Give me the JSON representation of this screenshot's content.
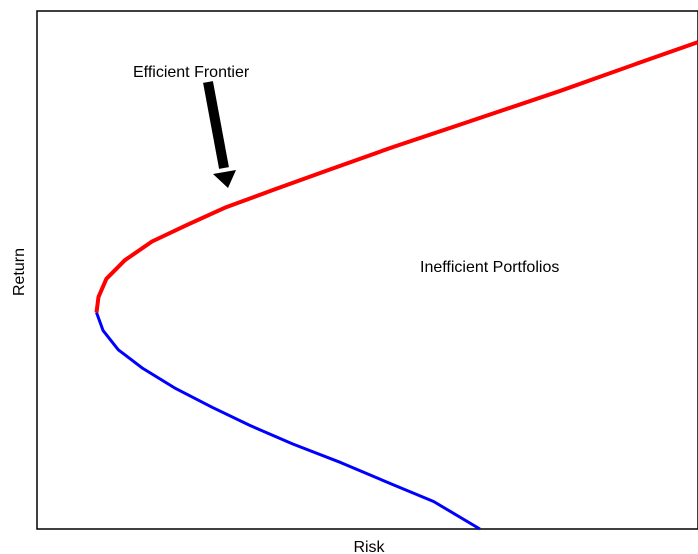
{
  "chart_data": {
    "type": "line",
    "title": "",
    "xlabel": "Risk",
    "ylabel": "Return",
    "xlim": [
      0,
      100
    ],
    "ylim": [
      0,
      100
    ],
    "grid": false,
    "legend": "none",
    "annotations": [
      {
        "text": "Efficient Frontier",
        "arrow": true
      },
      {
        "text": "Inefficient Portfolios",
        "arrow": false
      }
    ],
    "series": [
      {
        "color": "#ff0000",
        "x": [
          9.0,
          9.3,
          10.5,
          13.3,
          17.4,
          22.7,
          28.4,
          36.0,
          44.1,
          54.0,
          65.0,
          79.2,
          93.1,
          100.0
        ],
        "y": [
          41.8,
          44.8,
          48.3,
          51.9,
          55.5,
          58.7,
          62.0,
          65.6,
          69.3,
          73.8,
          78.5,
          84.6,
          90.9,
          94.0
        ]
      },
      {
        "color": "#0000ff",
        "x": [
          9.0,
          10.0,
          12.3,
          16.0,
          21.0,
          26.5,
          32.2,
          38.7,
          46.0,
          53.8,
          60.0,
          67.0
        ],
        "y": [
          41.8,
          38.3,
          34.6,
          31.0,
          27.1,
          23.5,
          20.0,
          16.4,
          12.8,
          8.6,
          5.3,
          0.0
        ]
      }
    ]
  }
}
